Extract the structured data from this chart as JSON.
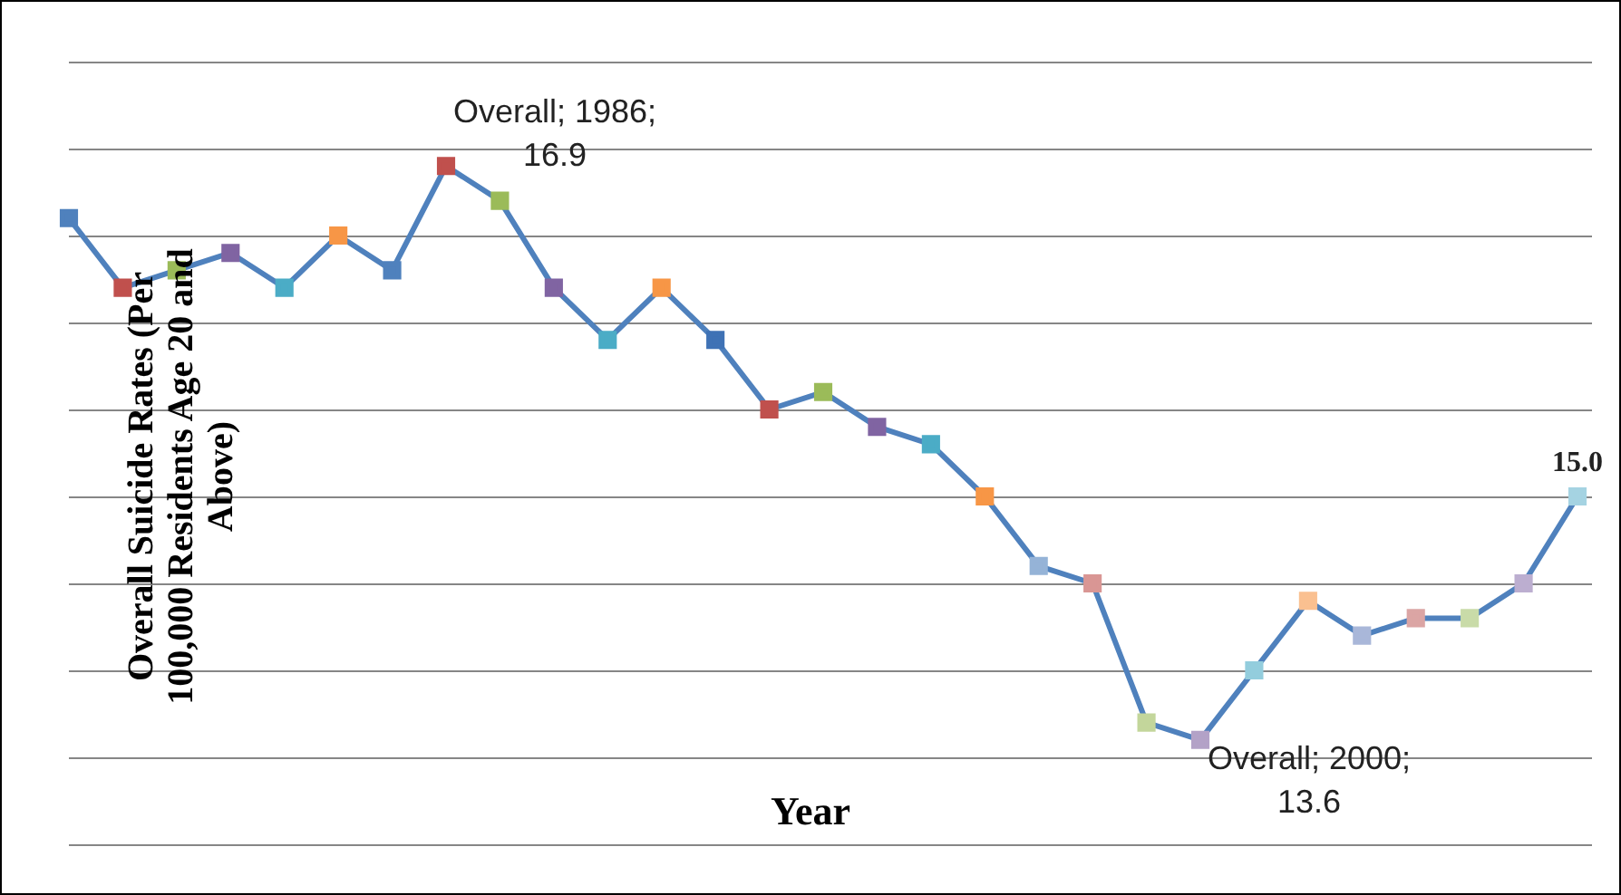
{
  "chart_data": {
    "type": "line",
    "xlabel": "Year",
    "ylabel": "Overall Suicide Rates (Per 100,000 Residents Age 20 and Above)",
    "categories": [
      null,
      null,
      null,
      null,
      null,
      null,
      null,
      null,
      null,
      null,
      null,
      null,
      null,
      null,
      null,
      null,
      null,
      null,
      null,
      null,
      null,
      null,
      null,
      null,
      null,
      null,
      null,
      null,
      null
    ],
    "values": [
      16.6,
      16.2,
      16.3,
      16.4,
      16.2,
      16.5,
      16.3,
      16.9,
      16.7,
      16.2,
      15.9,
      16.2,
      15.9,
      15.5,
      15.6,
      15.4,
      15.3,
      15.0,
      14.6,
      14.5,
      13.7,
      13.6,
      14.0,
      14.4,
      14.2,
      14.3,
      14.3,
      14.5,
      15.0
    ],
    "color": "#4f81bd",
    "colors": [
      "#4f81bd",
      "#c0504d",
      "#9bbb59",
      "#8064a2",
      "#4bacc6",
      "#f79646",
      "#4f81bd",
      "#c0504d",
      "#9bbb59",
      "#8064a2",
      "#4bacc6",
      "#f79646",
      "#3f72b5",
      "#c0504d",
      "#9bbb59",
      "#8064a2",
      "#4bacc6",
      "#f79646",
      "#95b3d7",
      "#d99694",
      "#c3d69b",
      "#b3a2c7",
      "#93cddd",
      "#fac090",
      "#a9b7d9",
      "#dba5a4",
      "#c9dba8",
      "#bcaed0",
      "#a5d3e2"
    ],
    "value_labels": [
      null,
      null,
      null,
      null,
      null,
      null,
      null,
      "Overall; 1986; 16.9",
      null,
      null,
      null,
      null,
      null,
      null,
      null,
      null,
      null,
      null,
      null,
      null,
      null,
      "Overall; 2000; 13.6",
      null,
      null,
      null,
      null,
      null,
      null,
      "15.0"
    ],
    "ylim": [
      13,
      17.5
    ],
    "yticks": [
      {
        "value": 13,
        "label": null
      },
      {
        "value": 13.5,
        "label": null
      },
      {
        "value": 14,
        "label": null
      },
      {
        "value": 14.5,
        "label": null
      },
      {
        "value": 15,
        "label": null
      },
      {
        "value": 15.5,
        "label": null
      },
      {
        "value": 16,
        "label": null
      },
      {
        "value": 16.5,
        "label": null
      },
      {
        "value": 17,
        "label": null
      },
      {
        "value": 17.5,
        "label": null
      }
    ],
    "tick_labels": false,
    "grid": "y",
    "legend": false,
    "marker": "square",
    "line_style": "solid"
  }
}
